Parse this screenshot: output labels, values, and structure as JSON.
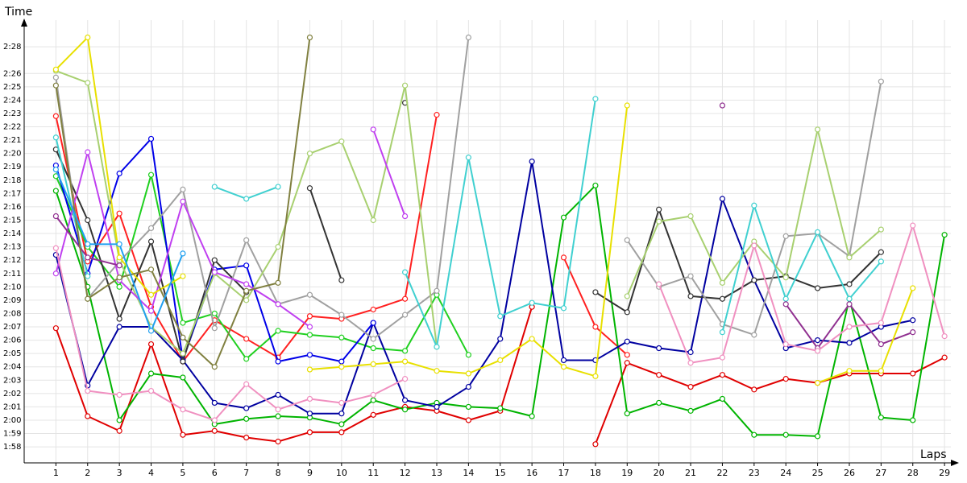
{
  "chart_data": {
    "type": "line",
    "y_label": "Time",
    "x_label": "Laps",
    "grid": true,
    "x": [
      1,
      2,
      3,
      4,
      5,
      6,
      7,
      8,
      9,
      10,
      11,
      12,
      13,
      14,
      15,
      16,
      17,
      18,
      19,
      20,
      21,
      22,
      23,
      24,
      25,
      26,
      27,
      28,
      29
    ],
    "xlim": [
      0,
      29.2
    ],
    "xticks": [
      1,
      2,
      3,
      4,
      5,
      6,
      7,
      8,
      9,
      10,
      11,
      12,
      13,
      14,
      15,
      16,
      17,
      18,
      19,
      20,
      21,
      22,
      23,
      24,
      25,
      26,
      27,
      28,
      29
    ],
    "ylim": [
      116.8,
      150
    ],
    "yticks": [
      {
        "value": 118,
        "label": "1:58"
      },
      {
        "value": 119,
        "label": "1:59"
      },
      {
        "value": 120,
        "label": "2:00"
      },
      {
        "value": 121,
        "label": "2:01"
      },
      {
        "value": 122,
        "label": "2:02"
      },
      {
        "value": 123,
        "label": "2:03"
      },
      {
        "value": 124,
        "label": "2:04"
      },
      {
        "value": 125,
        "label": "2:05"
      },
      {
        "value": 126,
        "label": "2:06"
      },
      {
        "value": 127,
        "label": "2:07"
      },
      {
        "value": 128,
        "label": "2:08"
      },
      {
        "value": 129,
        "label": "2:09"
      },
      {
        "value": 130,
        "label": "2:10"
      },
      {
        "value": 131,
        "label": "2:11"
      },
      {
        "value": 132,
        "label": "2:12"
      },
      {
        "value": 133,
        "label": "2:13"
      },
      {
        "value": 134,
        "label": "2:14"
      },
      {
        "value": 135,
        "label": "2:15"
      },
      {
        "value": 136,
        "label": "2:16"
      },
      {
        "value": 137,
        "label": "2:17"
      },
      {
        "value": 138,
        "label": "2:18"
      },
      {
        "value": 139,
        "label": "2:19"
      },
      {
        "value": 140,
        "label": "2:20"
      },
      {
        "value": 141,
        "label": "2:21"
      },
      {
        "value": 142,
        "label": "2:22"
      },
      {
        "value": 143,
        "label": "2:23"
      },
      {
        "value": 144,
        "label": "2:24"
      },
      {
        "value": 145,
        "label": "2:25"
      },
      {
        "value": 146,
        "label": "2:26"
      },
      {
        "value": 148,
        "label": "2:28"
      }
    ],
    "series": [
      {
        "color": "#e00000",
        "values": [
          126.9,
          120.3,
          119.2,
          125.7,
          118.9,
          119.2,
          118.7,
          118.4,
          119.1,
          119.1,
          120.4,
          121,
          120.7,
          120,
          120.7,
          128.5,
          null,
          118.2,
          124.3,
          123.4,
          122.5,
          123.4,
          122.3,
          123.1,
          122.8,
          123.5,
          123.5,
          123.5,
          124.7
        ]
      },
      {
        "color": "#ff2020",
        "values": [
          142.8,
          131.9,
          135.5,
          128.5,
          124.4,
          127.5,
          126.1,
          124.7,
          127.8,
          127.6,
          128.3,
          129.1,
          142.9,
          null,
          null,
          null,
          132.2,
          127,
          124.9,
          null,
          null,
          null,
          null,
          null,
          null,
          null,
          null,
          null,
          null
        ]
      },
      {
        "color": "#00b400",
        "values": [
          137.2,
          130,
          120,
          123.5,
          123.2,
          119.7,
          120.1,
          120.3,
          120.2,
          119.7,
          121.5,
          120.8,
          121.3,
          121,
          120.9,
          120.3,
          135.2,
          137.6,
          120.5,
          121.3,
          120.7,
          121.6,
          118.9,
          118.9,
          118.8,
          129.1,
          120.2,
          120,
          133.9
        ]
      },
      {
        "color": "#20d020",
        "values": [
          138.3,
          133,
          130,
          138.4,
          127.3,
          128,
          124.6,
          126.7,
          126.4,
          126.2,
          125.4,
          125.2,
          129.4,
          124.9,
          null,
          null,
          null,
          null,
          null,
          null,
          null,
          null,
          null,
          null,
          null,
          null,
          null,
          null,
          null
        ]
      },
      {
        "color": "#0000a0",
        "values": [
          132.4,
          122.6,
          127,
          127,
          124.5,
          121.3,
          120.9,
          121.9,
          120.5,
          120.5,
          127.3,
          121.5,
          121,
          122.5,
          126.1,
          139.4,
          124.5,
          124.5,
          125.9,
          125.4,
          125.1,
          136.6,
          130.5,
          125.4,
          126,
          125.8,
          127,
          127.5,
          null
        ]
      },
      {
        "color": "#0000e8",
        "values": [
          139.1,
          131,
          138.5,
          141.1,
          124.5,
          131.3,
          131.6,
          124.4,
          124.9,
          124.4,
          127.3,
          null,
          null,
          null,
          null,
          null,
          null,
          null,
          null,
          null,
          null,
          null,
          null,
          null,
          null,
          null,
          null,
          null,
          null
        ]
      },
      {
        "color": "#333333",
        "values": [
          140.3,
          135,
          127.6,
          133.4,
          124.4,
          132,
          129.6,
          null,
          137.4,
          130.5,
          null,
          143.8,
          null,
          null,
          null,
          null,
          null,
          129.6,
          128.1,
          135.8,
          129.3,
          129.1,
          130.5,
          130.8,
          129.9,
          130.2,
          132.6,
          null,
          null
        ]
      },
      {
        "color": "#a0a0a0",
        "values": [
          145.7,
          129.1,
          131.9,
          134.4,
          137.3,
          126.9,
          133.5,
          128.7,
          129.4,
          127.9,
          126.1,
          127.9,
          129.7,
          148.7,
          null,
          null,
          null,
          null,
          133.5,
          130,
          130.8,
          127.2,
          126.4,
          133.8,
          134,
          132.3,
          145.4,
          null,
          null
        ]
      },
      {
        "color": "#a8d070",
        "values": [
          146.2,
          145.3,
          132,
          127,
          125,
          131,
          129,
          133,
          140,
          140.9,
          135,
          145.1,
          125.5,
          null,
          null,
          null,
          null,
          null,
          129.3,
          134.9,
          135.3,
          130.3,
          133.4,
          130.7,
          141.8,
          132.2,
          134.3,
          null,
          null
        ]
      },
      {
        "color": "#40d0d0",
        "values": [
          141.2,
          130.8,
          null,
          null,
          null,
          137.5,
          136.6,
          137.5,
          null,
          null,
          null,
          131.1,
          125.5,
          139.7,
          127.8,
          128.8,
          128.4,
          144.1,
          null,
          null,
          null,
          126.6,
          136.1,
          129.1,
          134.1,
          129.1,
          131.9,
          null,
          null
        ]
      },
      {
        "color": "#c040f0",
        "values": [
          131,
          140.1,
          130.5,
          128.2,
          136.4,
          131.1,
          130.2,
          128.7,
          127,
          null,
          141.8,
          135.3,
          null,
          null,
          null,
          null,
          null,
          null,
          null,
          null,
          null,
          null,
          null,
          null,
          null,
          null,
          null,
          null,
          null
        ]
      },
      {
        "color": "#903090",
        "values": [
          135.3,
          132.2,
          131.6,
          null,
          null,
          null,
          null,
          null,
          null,
          null,
          null,
          null,
          null,
          null,
          null,
          null,
          null,
          null,
          null,
          null,
          null,
          143.6,
          null,
          128.7,
          125.4,
          128.7,
          125.7,
          126.6,
          null
        ]
      },
      {
        "color": "#f090c0",
        "values": [
          132.9,
          122.2,
          121.9,
          122.2,
          120.8,
          120,
          122.7,
          120.8,
          121.6,
          121.3,
          121.9,
          123.1,
          null,
          null,
          null,
          null,
          null,
          null,
          null,
          130.2,
          124.3,
          124.7,
          133.1,
          125.7,
          125.2,
          127,
          127.3,
          134.6,
          126.3
        ]
      },
      {
        "color": "#e8e000",
        "values": [
          146.3,
          148.7,
          132.2,
          129.4,
          130.8,
          null,
          null,
          null,
          123.8,
          124,
          124.2,
          124.4,
          123.7,
          123.5,
          124.5,
          126.1,
          124,
          123.3,
          143.6,
          null,
          null,
          null,
          null,
          null,
          122.8,
          123.7,
          123.7,
          129.9,
          null
        ]
      },
      {
        "color": "#808040",
        "values": [
          145.1,
          129.1,
          130.7,
          131.3,
          126.2,
          124,
          129.7,
          130.3,
          148.7,
          null,
          null,
          null,
          null,
          null,
          null,
          null,
          null,
          null,
          null,
          null,
          null,
          null,
          null,
          null,
          null,
          null,
          null,
          null,
          null
        ]
      },
      {
        "color": "#20a0f0",
        "values": [
          138.8,
          133.2,
          133.2,
          126.7,
          132.5,
          null,
          null,
          null,
          null,
          null,
          null,
          null,
          null,
          null,
          null,
          null,
          null,
          null,
          null,
          null,
          null,
          null,
          null,
          null,
          null,
          null,
          null,
          null,
          null
        ]
      }
    ]
  }
}
